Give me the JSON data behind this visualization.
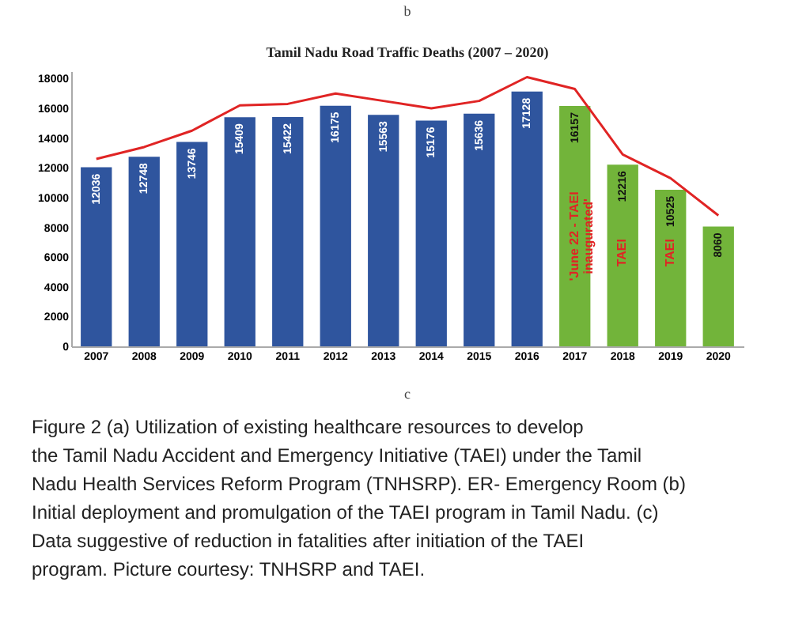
{
  "chart_data": {
    "type": "bar",
    "title": "Tamil Nadu Road Traffic Deaths (2007 – 2020)",
    "categories": [
      "2007",
      "2008",
      "2009",
      "2010",
      "2011",
      "2012",
      "2013",
      "2014",
      "2015",
      "2016",
      "2017",
      "2018",
      "2019",
      "2020"
    ],
    "series": [
      {
        "values": [
          12036,
          12748,
          13746,
          15409,
          15422,
          16175,
          15563,
          15176,
          15636,
          17128,
          16157,
          12216,
          10525,
          8060
        ],
        "value_labels": [
          "12036",
          "12748",
          "13746",
          "15409",
          "15422",
          "16175",
          "15563",
          "15176",
          "15636",
          "17128",
          "16157",
          "12216",
          "10525",
          "8060"
        ],
        "colors": [
          "#2f559e",
          "#2f559e",
          "#2f559e",
          "#2f559e",
          "#2f559e",
          "#2f559e",
          "#2f559e",
          "#2f559e",
          "#2f559e",
          "#2f559e",
          "#72b43a",
          "#72b43a",
          "#72b43a",
          "#72b43a"
        ]
      },
      {
        "type": "line",
        "color": "#e02424",
        "values": [
          12600,
          13400,
          14500,
          16200,
          16300,
          17000,
          16500,
          16000,
          16500,
          18100,
          17300,
          12900,
          11300,
          8800
        ]
      }
    ],
    "ylim": [
      0,
      18500
    ],
    "yticks": [
      0,
      2000,
      4000,
      6000,
      8000,
      10000,
      12000,
      14000,
      16000,
      18000
    ],
    "grid": false,
    "marker": "none",
    "line_style": "solid",
    "annotations": [
      "b",
      "c",
      "'June 22 - TAEI inaugurated'",
      "TAEI",
      "TAEI",
      "Figure 2    (a) Utilization of existing healthcare resources to develop the Tamil Nadu Accident and Emergency Initiative (TAEI) under the Tamil Nadu Health Services Reform Program (TNHSRP). ER- Emergency Room (b) Initial deployment and promulgation of the TAEI program in Tamil Nadu. (c) Data suggestive of reduction in fatalities after initiation of the TAEI program. Picture courtesy: TNHSRP and TAEI."
    ]
  }
}
